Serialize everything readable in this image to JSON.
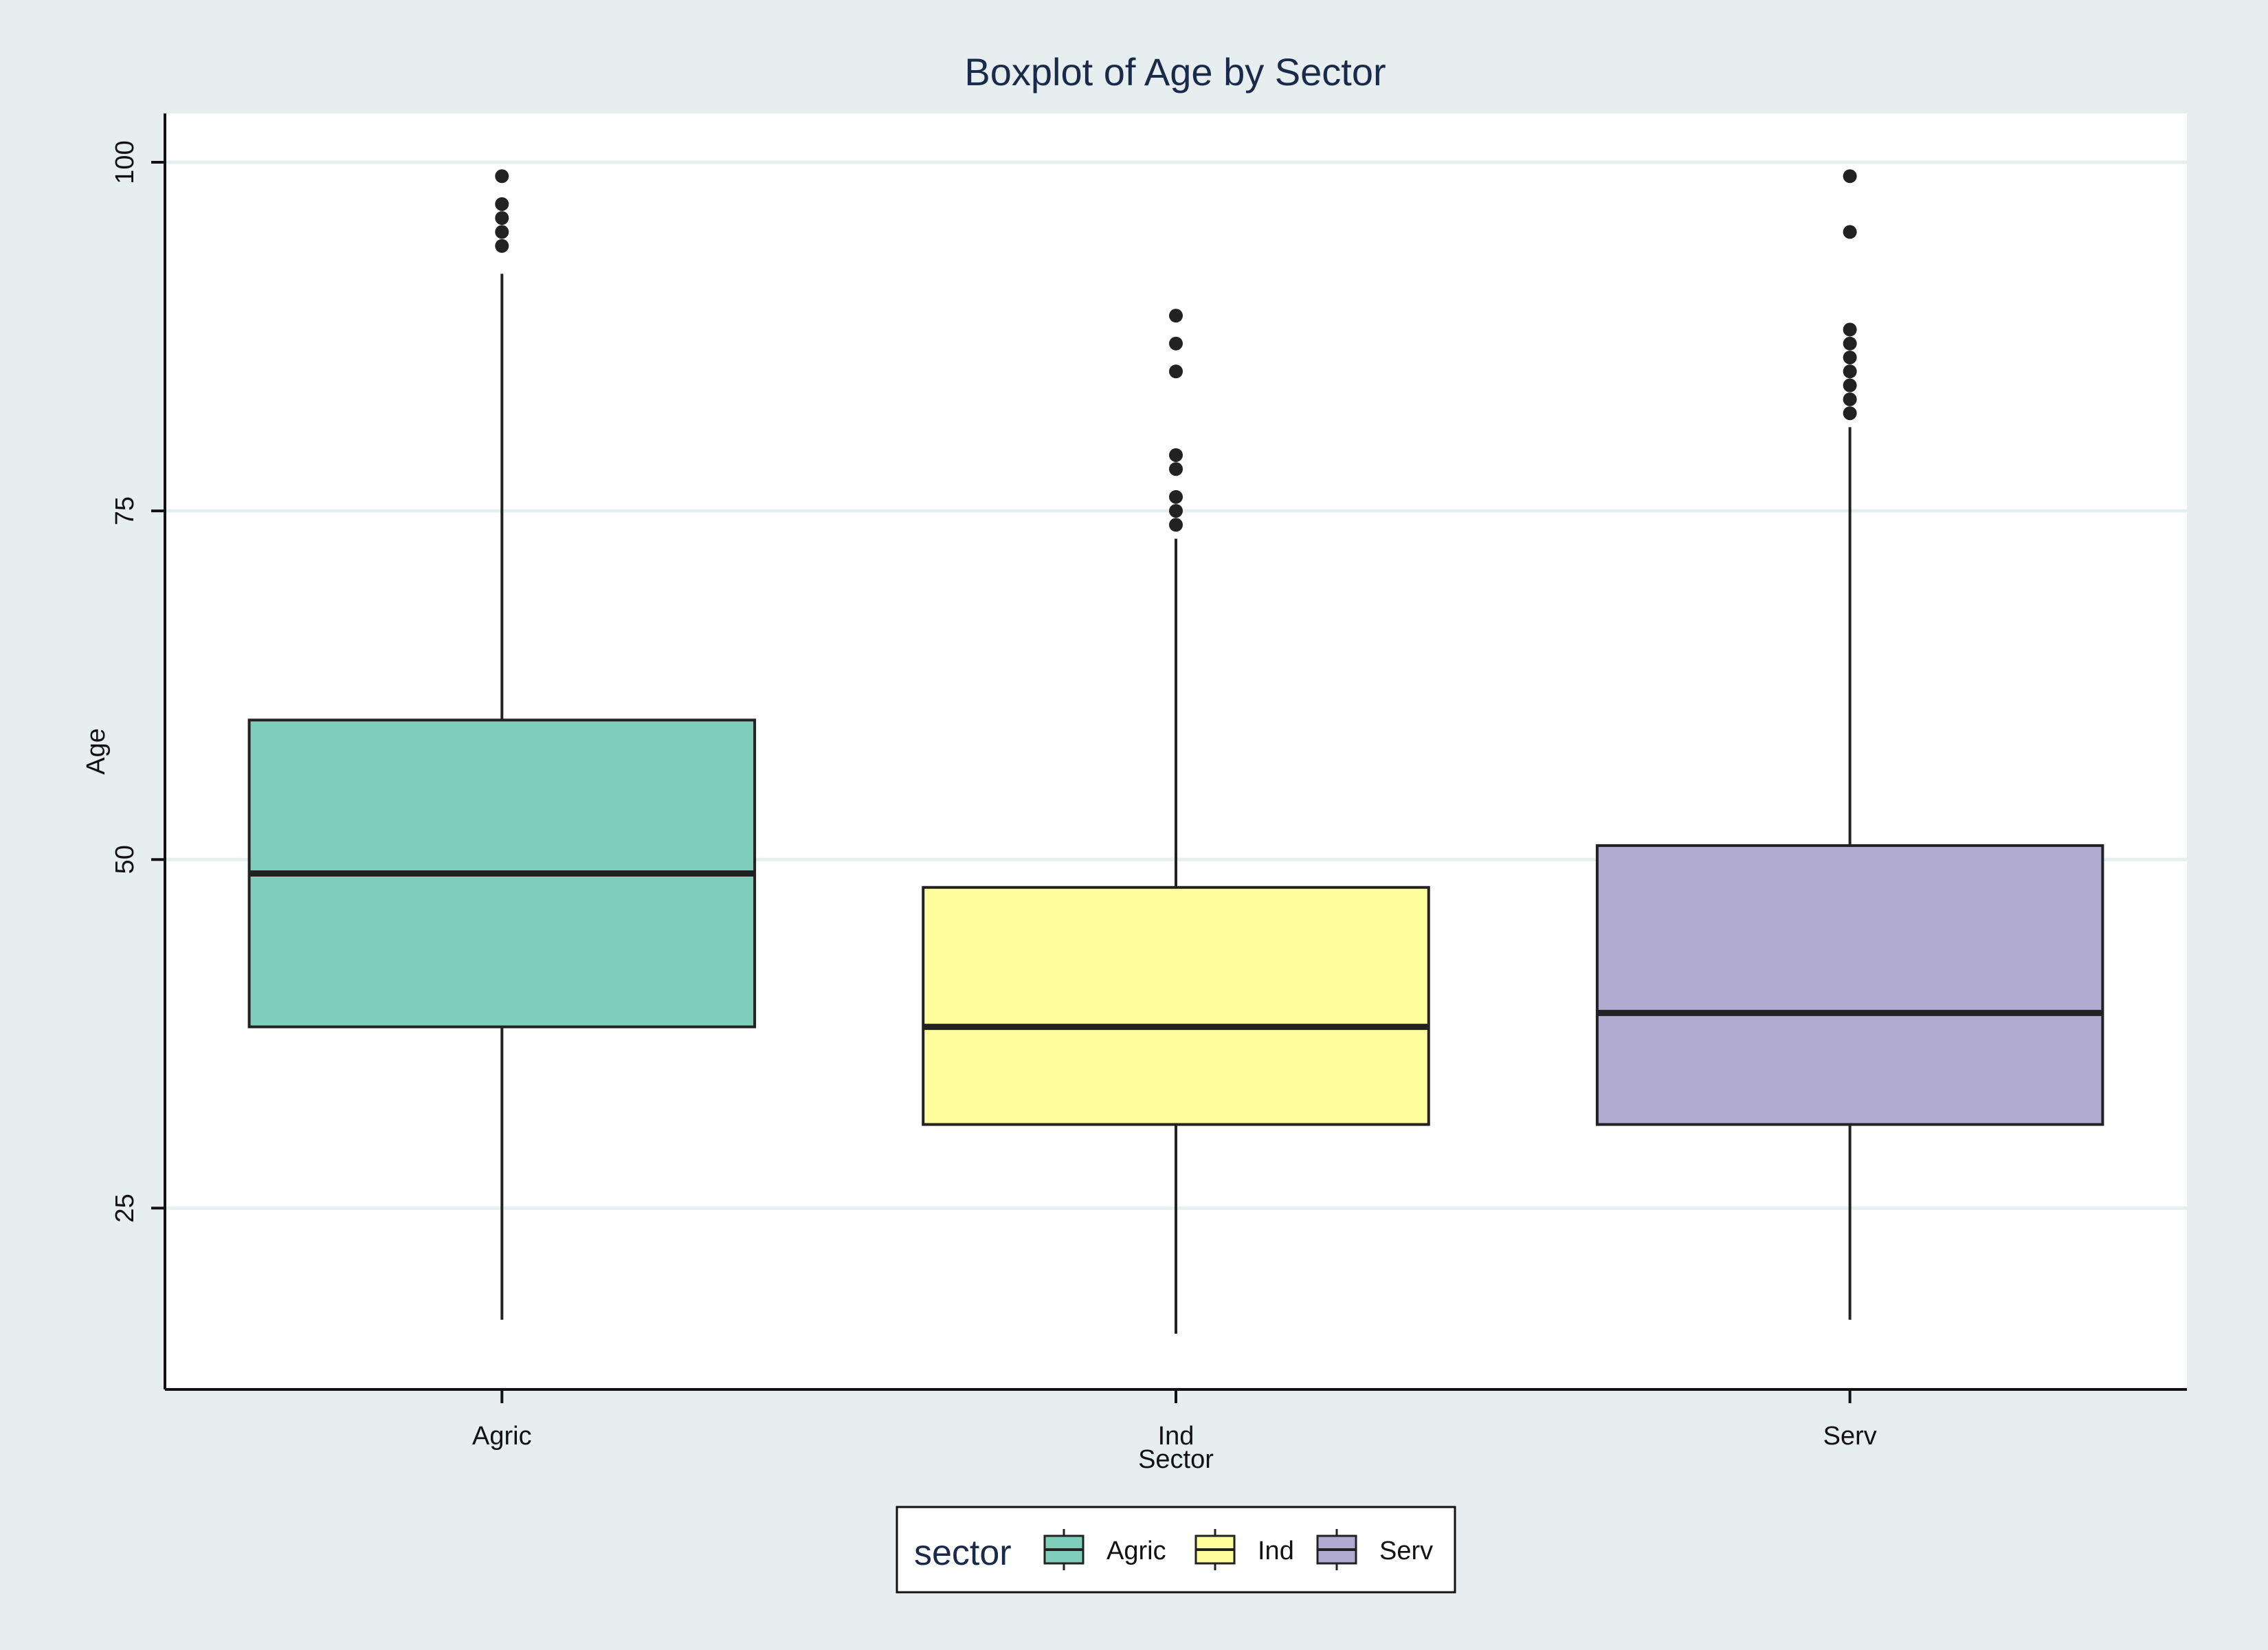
{
  "chart_data": {
    "type": "boxplot",
    "title": "Boxplot of Age by Sector",
    "xlabel": "Sector",
    "ylabel": "Age",
    "ylim": [
      12,
      103.5
    ],
    "yticks": [
      25,
      50,
      75,
      100
    ],
    "grid": true,
    "legend": {
      "title": "sector",
      "position": "bottom-center"
    },
    "categories": [
      "Agric",
      "Ind",
      "Serv"
    ],
    "series": [
      {
        "category": "Agric",
        "color": "#7fcdbb",
        "whisker_low": 17,
        "q1": 38,
        "median": 49,
        "q3": 60,
        "whisker_high": 92,
        "outliers": [
          94,
          95,
          96,
          97,
          99
        ]
      },
      {
        "category": "Ind",
        "color": "#ffff9e",
        "whisker_low": 16,
        "q1": 31,
        "median": 38,
        "q3": 48,
        "whisker_high": 73,
        "outliers": [
          74,
          75,
          76,
          78,
          79,
          85,
          87,
          89
        ]
      },
      {
        "category": "Serv",
        "color": "#b0aad1",
        "whisker_low": 17,
        "q1": 31,
        "median": 39,
        "q3": 51,
        "whisker_high": 81,
        "outliers": [
          82,
          83,
          84,
          85,
          86,
          87,
          88,
          95,
          99
        ]
      }
    ]
  }
}
